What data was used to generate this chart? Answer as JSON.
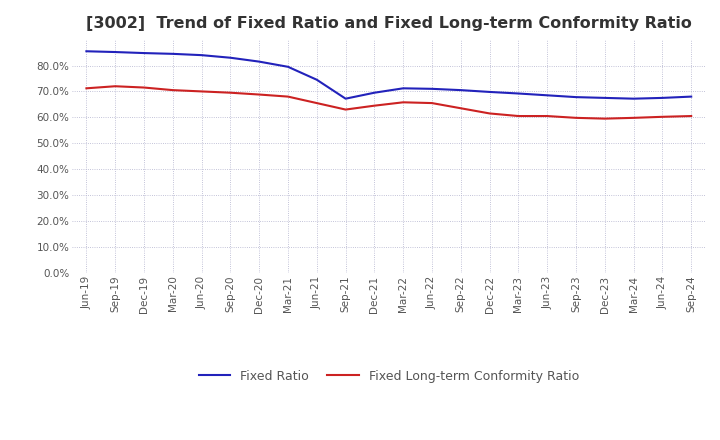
{
  "title": "[3002]  Trend of Fixed Ratio and Fixed Long-term Conformity Ratio",
  "x_labels": [
    "Jun-19",
    "Sep-19",
    "Dec-19",
    "Mar-20",
    "Jun-20",
    "Sep-20",
    "Dec-20",
    "Mar-21",
    "Jun-21",
    "Sep-21",
    "Dec-21",
    "Mar-22",
    "Jun-22",
    "Sep-22",
    "Dec-22",
    "Mar-23",
    "Jun-23",
    "Sep-23",
    "Dec-23",
    "Mar-24",
    "Jun-24",
    "Sep-24"
  ],
  "fixed_ratio": [
    85.5,
    85.2,
    84.8,
    84.5,
    84.0,
    83.0,
    81.5,
    79.5,
    74.5,
    67.2,
    69.5,
    71.2,
    71.0,
    70.5,
    69.8,
    69.2,
    68.5,
    67.8,
    67.5,
    67.2,
    67.5,
    68.0
  ],
  "fixed_lt_ratio": [
    71.2,
    72.0,
    71.5,
    70.5,
    70.0,
    69.5,
    68.8,
    68.0,
    65.5,
    63.0,
    64.5,
    65.8,
    65.5,
    63.5,
    61.5,
    60.5,
    60.5,
    59.8,
    59.5,
    59.8,
    60.2,
    60.5
  ],
  "ylim": [
    0.0,
    90.0
  ],
  "yticks": [
    0.0,
    10.0,
    20.0,
    30.0,
    40.0,
    50.0,
    60.0,
    70.0,
    80.0
  ],
  "blue_color": "#2222bb",
  "red_color": "#cc2222",
  "grid_color": "#b0b0cc",
  "background_color": "#ffffff",
  "legend_fixed_ratio": "Fixed Ratio",
  "legend_fixed_lt_ratio": "Fixed Long-term Conformity Ratio",
  "title_color": "#333333",
  "title_fontsize": 11.5,
  "tick_label_color": "#555555",
  "tick_fontsize": 7.5,
  "legend_fontsize": 9
}
